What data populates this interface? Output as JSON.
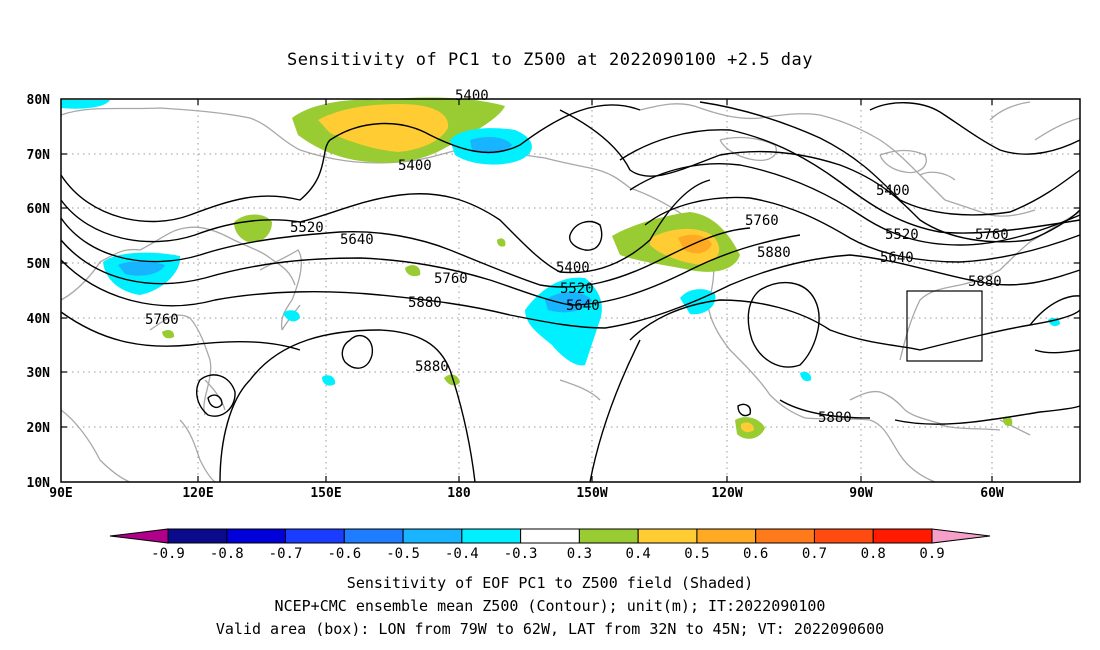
{
  "title": "Sensitivity of PC1 to Z500 at 2022090100 +2.5 day",
  "lat_labels": [
    "80N",
    "70N",
    "60N",
    "50N",
    "40N",
    "30N",
    "20N",
    "10N"
  ],
  "lon_labels": [
    "90E",
    "120E",
    "150E",
    "180",
    "150W",
    "120W",
    "90W",
    "60W"
  ],
  "contour_labels": [
    "5400",
    "5520",
    "5640",
    "5760",
    "5880",
    "5400",
    "5520",
    "5640",
    "5760",
    "5880",
    "5880",
    "5400",
    "5520",
    "5640",
    "5760",
    "5880",
    "5880",
    "5760",
    "5400"
  ],
  "colorbar": {
    "ticks": [
      "-0.9",
      "-0.8",
      "-0.7",
      "-0.6",
      "-0.5",
      "-0.4",
      "-0.3",
      "0.3",
      "0.4",
      "0.5",
      "0.6",
      "0.7",
      "0.8",
      "0.9"
    ],
    "colors": [
      "#b0008a",
      "#0a0a8c",
      "#0000d8",
      "#1a3cff",
      "#1e7cff",
      "#19b4ff",
      "#00f0ff",
      "#ffffff",
      "#99cc33",
      "#ffcc33",
      "#ffaa22",
      "#ff7a1a",
      "#ff4a10",
      "#ff1a00",
      "#f5a0c8"
    ]
  },
  "shading_colors": {
    "cyan": "#00f0ff",
    "light_blue": "#19b4ff",
    "green": "#99cc33",
    "yellow": "#ffcc33",
    "orange": "#ffaa22"
  },
  "captions": [
    "Sensitivity of EOF PC1 to Z500 field (Shaded)",
    "NCEP+CMC ensemble mean Z500 (Contour); unit(m); IT:2022090100",
    "Valid area (box): LON from 79W to 62W, LAT from 32N to 45N; VT: 2022090600"
  ]
}
